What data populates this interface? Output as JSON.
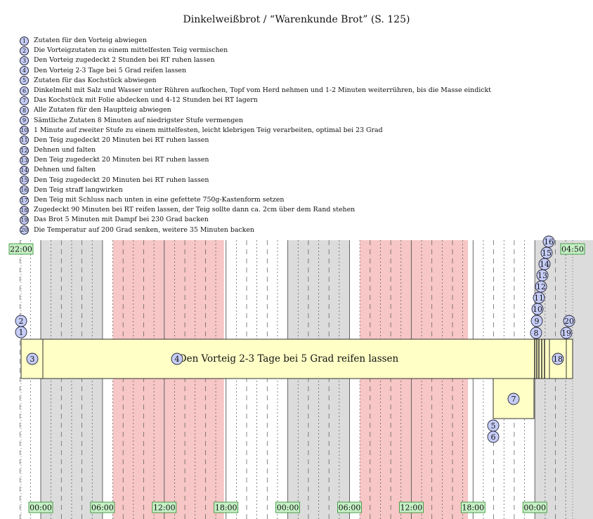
{
  "title": "Dinkelweißbrot / “Warenkunde Brot” (S. 125)",
  "steps": [
    "Zutaten für den Vorteig abwiegen",
    "Die Vorteigzutaten zu einem mittelfesten Teig vermischen",
    "Den Vorteig zugedeckt 2 Stunden bei RT ruhen lassen",
    "Den Vorteig 2-3 Tage bei 5 Grad reifen lassen",
    "Zutaten für das Kochstück abwiegen",
    "Dinkelmehl mit Salz und Wasser unter Rühren aufkochen, Topf vom Herd nehmen und 1-2 Minuten weiterrühren, bis die Masse eindickt",
    "Das Kochstück mit Folie abdecken und 4-12 Stunden bei RT lagern",
    "Alle Zutaten für den Hauptteig abwiegen",
    "Sämtliche Zutaten 8 Minuten auf niedrigster Stufe vermengen",
    "1 Minute auf zweiter Stufe zu einem mittelfesten, leicht klebrigen Teig verarbeiten, optimal bei 23 Grad",
    "Den Teig zugedeckt 20 Minuten bei RT ruhen lassen",
    "Dehnen und falten",
    "Den Teig zugedeckt 20 Minuten bei RT ruhen lassen",
    "Dehnen und falten",
    "Den Teig zugedeckt 20 Minuten bei RT ruhen lassen",
    "Den Teig straff langwirken",
    "Den Teig mit Schluss nach unten in eine gefettete 750g-Kastenform setzen",
    "Zugedeckt 90 Minuten bei RT reifen lassen, der Teig sollte dann ca. 2cm über dem Rand stehen",
    "Das Brot 5 Minuten mit Dampf bei 230 Grad backen",
    "Die Temperatur auf 200 Grad senken, weitere 35 Minuten backen"
  ],
  "start_label": "22:00",
  "end_label": "04:50",
  "axis_labels": [
    "00:00",
    "06:00",
    "12:00",
    "18:00",
    "00:00",
    "06:00",
    "12:00",
    "18:00",
    "00:00"
  ],
  "step_numbers": [
    "1",
    "2",
    "3",
    "4",
    "5",
    "6",
    "7",
    "8",
    "9",
    "10",
    "11",
    "12",
    "13",
    "14",
    "15",
    "16",
    "17",
    "18",
    "19",
    "20"
  ],
  "main_bar_label": "Den Vorteig 2-3 Tage bei 5 Grad reifen lassen",
  "colors": {
    "night": "#dcdcdc",
    "workday": "#f7c6c6",
    "task_fill": "#ffffc6",
    "circle_fill": "#c6cdf7",
    "label_fill": "#c6f0c6",
    "label_border": "#2a8a2a"
  }
}
